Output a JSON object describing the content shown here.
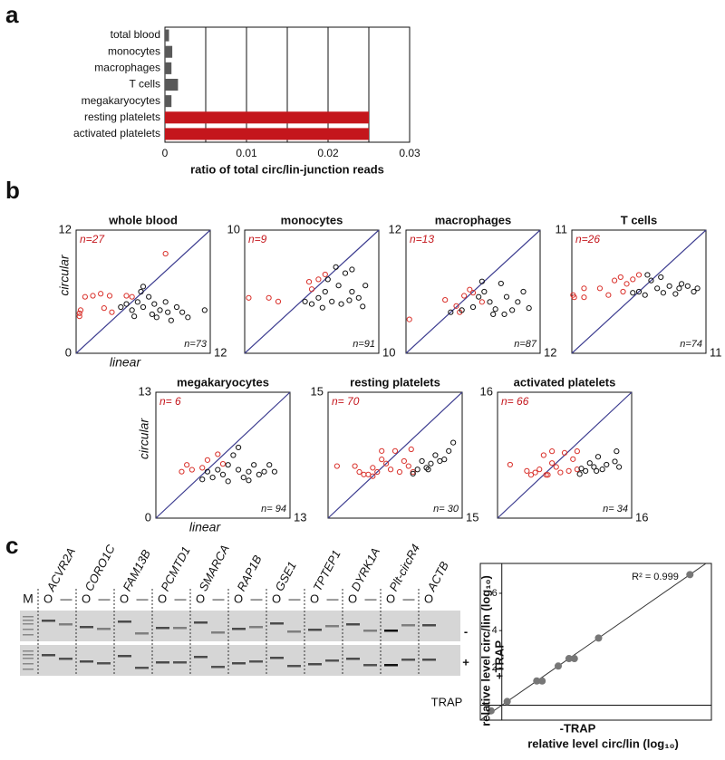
{
  "panel_labels": [
    "a",
    "b",
    "c"
  ],
  "chart_data": [
    {
      "type": "bar",
      "categories": [
        "total blood",
        "monocytes",
        "macrophages",
        "T cells",
        "megakaryocytes",
        "resting platelets",
        "activated platelets"
      ],
      "values": [
        0.0005,
        0.0009,
        0.0008,
        0.0016,
        0.0008,
        0.025,
        0.025
      ],
      "colors": [
        "#595959",
        "#595959",
        "#595959",
        "#595959",
        "#595959",
        "#c4161c",
        "#c4161c"
      ],
      "xlim": [
        0,
        0.03
      ],
      "xticks": [
        0,
        0.01,
        0.02,
        0.03
      ],
      "minor_xticks": [
        0.005,
        0.015,
        0.025
      ],
      "grid": true,
      "xlabel": "ratio of total circ/lin-junction reads"
    },
    {
      "type": "scatter",
      "title": "whole blood",
      "xlim": [
        0,
        12
      ],
      "ylim": [
        0,
        12
      ],
      "xticks": [
        12
      ],
      "yticks": [
        0,
        12
      ],
      "diagonal": "#3b3b8f",
      "xlabel": "linear",
      "ylabel": "circular",
      "annotations": [
        {
          "text": "n=27",
          "color": "#c4161c"
        },
        {
          "text": "n=73",
          "color": "#111"
        }
      ],
      "series": [
        {
          "color": "#d9302a",
          "x": [
            0.3,
            0.3,
            0.4,
            0.8,
            1.5,
            2.2,
            3,
            4.5,
            5,
            2.5,
            3.2,
            8
          ],
          "y": [
            3.6,
            3.9,
            4.2,
            5.5,
            5.6,
            5.8,
            5.6,
            5.6,
            5.5,
            4.4,
            4,
            9.7
          ]
        },
        {
          "color": "#111",
          "x": [
            4,
            4.5,
            5,
            5.5,
            5.8,
            6,
            6.5,
            7,
            7.2,
            7.5,
            8,
            8.2,
            8.5,
            9,
            9.5,
            10,
            11.5,
            6,
            6.8,
            5.2
          ],
          "y": [
            4.5,
            4.8,
            4.2,
            5,
            6,
            4.5,
            5.5,
            4.8,
            3.5,
            4.2,
            5,
            4,
            3.2,
            4.5,
            4,
            3.5,
            4.2,
            6.5,
            3.8,
            3.6
          ]
        }
      ]
    },
    {
      "type": "scatter",
      "title": "monocytes",
      "xlim": [
        0,
        10
      ],
      "ylim": [
        0,
        10
      ],
      "xticks": [
        10
      ],
      "yticks": [
        10
      ],
      "diagonal": "#3b3b8f",
      "annotations": [
        {
          "text": "n=9",
          "color": "#c4161c"
        },
        {
          "text": "n=91",
          "color": "#111"
        }
      ],
      "series": [
        {
          "color": "#d9302a",
          "x": [
            0.3,
            1.8,
            2.5,
            4.8,
            5.5,
            6,
            5
          ],
          "y": [
            4.5,
            4.5,
            4.2,
            5.8,
            6,
            6.4,
            5.2
          ]
        },
        {
          "color": "#111",
          "x": [
            4.5,
            5,
            5.5,
            6,
            6.5,
            7,
            7.5,
            8,
            8.5,
            8.8,
            6.2,
            7.2,
            5.8,
            8,
            6.8,
            7.8,
            9
          ],
          "y": [
            4.2,
            4,
            4.5,
            5,
            4.2,
            5.5,
            6.5,
            5,
            4.5,
            3.8,
            6,
            4,
            3.7,
            6.8,
            7,
            4.3,
            5.5
          ]
        }
      ]
    },
    {
      "type": "scatter",
      "title": "macrophages",
      "xlim": [
        0,
        12
      ],
      "ylim": [
        0,
        12
      ],
      "xticks": [
        12
      ],
      "yticks": [
        12
      ],
      "diagonal": "#3b3b8f",
      "annotations": [
        {
          "text": "n=13",
          "color": "#c4161c"
        },
        {
          "text": "n=87",
          "color": "#111"
        }
      ],
      "series": [
        {
          "color": "#d9302a",
          "x": [
            0.3,
            3.5,
            4.5,
            5.2,
            6,
            5.7,
            4.8,
            6.8
          ],
          "y": [
            3.3,
            5.2,
            4.6,
            5.6,
            5.9,
            6.2,
            4,
            5
          ]
        },
        {
          "color": "#111",
          "x": [
            4,
            5,
            6,
            6.5,
            7,
            7.5,
            8,
            8.5,
            9,
            9.5,
            10,
            11,
            6.8,
            7.8,
            8.8,
            10.5
          ],
          "y": [
            4,
            4.2,
            4.5,
            5.5,
            6,
            5,
            4.3,
            6.8,
            5.5,
            4.2,
            5,
            4.4,
            7,
            3.8,
            3.8,
            6
          ]
        }
      ]
    },
    {
      "type": "scatter",
      "title": "T cells",
      "xlim": [
        0,
        11
      ],
      "ylim": [
        0,
        11
      ],
      "xticks": [
        11
      ],
      "yticks": [
        11
      ],
      "diagonal": "#3b3b8f",
      "annotations": [
        {
          "text": "n=26",
          "color": "#c4161c"
        },
        {
          "text": "n=74",
          "color": "#111"
        }
      ],
      "series": [
        {
          "color": "#d9302a",
          "x": [
            0.1,
            0.2,
            1,
            1,
            2.3,
            3,
            3.5,
            4,
            4.5,
            5,
            5.5,
            4.2
          ],
          "y": [
            5.2,
            5,
            5.8,
            5,
            5.8,
            5.2,
            6.5,
            6.8,
            6.2,
            6.6,
            7,
            5.5
          ]
        },
        {
          "color": "#111",
          "x": [
            5,
            5.5,
            6,
            6.5,
            7,
            7.5,
            8,
            8.5,
            9,
            9.5,
            10,
            6.2,
            7.3,
            8.8,
            10.3
          ],
          "y": [
            5.4,
            5.5,
            5.2,
            6.5,
            5.8,
            5.4,
            6,
            5.3,
            6.2,
            6,
            5.5,
            7,
            6.8,
            5.8,
            5.8
          ]
        }
      ]
    },
    {
      "type": "scatter",
      "title": "megakaryocytes",
      "xlim": [
        0,
        13
      ],
      "ylim": [
        0,
        13
      ],
      "xticks": [
        13
      ],
      "yticks": [
        0,
        13
      ],
      "diagonal": "#3b3b8f",
      "xlabel": "linear",
      "ylabel": "circular",
      "annotations": [
        {
          "text": "n= 6",
          "color": "#c4161c"
        },
        {
          "text": "n= 94",
          "color": "#111"
        }
      ],
      "series": [
        {
          "color": "#d9302a",
          "x": [
            2.5,
            3,
            3.5,
            4.5,
            5,
            6,
            6.5
          ],
          "y": [
            4.8,
            5.5,
            5,
            5.2,
            6,
            6.6,
            5.6
          ]
        },
        {
          "color": "#111",
          "x": [
            4.5,
            5,
            5.5,
            6,
            6.5,
            7,
            7.5,
            8,
            8.5,
            9,
            9.5,
            10,
            10.5,
            11,
            11.5,
            8,
            7,
            9
          ],
          "y": [
            4,
            4.8,
            4.2,
            5,
            4.5,
            5.5,
            6.5,
            5,
            4.2,
            4.8,
            5.5,
            4.5,
            4.8,
            5.5,
            4.8,
            7.3,
            3.8,
            3.9
          ]
        }
      ]
    },
    {
      "type": "scatter",
      "title": "resting platelets",
      "xlim": [
        0,
        15
      ],
      "ylim": [
        0,
        15
      ],
      "xticks": [
        15
      ],
      "yticks": [
        15
      ],
      "diagonal": "#3b3b8f",
      "annotations": [
        {
          "text": "n= 70",
          "color": "#c4161c"
        },
        {
          "text": "n= 30",
          "color": "#111"
        }
      ],
      "series": [
        {
          "color": "#d9302a",
          "x": [
            1,
            3,
            3.5,
            4,
            4.5,
            5,
            5.5,
            6,
            6.5,
            7,
            7.5,
            8,
            8.5,
            6,
            5,
            9,
            9.5,
            9.3
          ],
          "y": [
            6.2,
            6.2,
            5.5,
            5.2,
            5.2,
            6,
            5.5,
            7,
            6.5,
            5.8,
            8,
            5.5,
            6.8,
            8,
            5,
            6.2,
            5.5,
            8.2
          ]
        },
        {
          "color": "#111",
          "x": [
            9.5,
            10,
            10.5,
            11,
            11.5,
            12,
            12.5,
            13,
            13.5,
            14,
            11.2
          ],
          "y": [
            5.3,
            5.8,
            6.8,
            6,
            6.5,
            7.5,
            6.8,
            7,
            8,
            9,
            5.8
          ]
        }
      ]
    },
    {
      "type": "scatter",
      "title": "activated platelets",
      "xlim": [
        0,
        16
      ],
      "ylim": [
        0,
        16
      ],
      "xticks": [
        16
      ],
      "yticks": [
        16
      ],
      "diagonal": "#3b3b8f",
      "annotations": [
        {
          "text": "n= 66",
          "color": "#c4161c"
        },
        {
          "text": "n= 34",
          "color": "#111"
        }
      ],
      "series": [
        {
          "color": "#d9302a",
          "x": [
            1.5,
            3.5,
            4,
            4.5,
            5,
            5.5,
            6,
            6.5,
            7,
            7.5,
            8,
            8.5,
            9,
            9.5,
            6.5,
            5.8,
            9.5
          ],
          "y": [
            6.8,
            6,
            5.5,
            5.8,
            6.2,
            8,
            5.5,
            7,
            6.5,
            5.8,
            8.3,
            6,
            7.5,
            6.2,
            8.5,
            5.5,
            8.5
          ]
        },
        {
          "color": "#111",
          "x": [
            9.8,
            10,
            10.5,
            11,
            11.5,
            12,
            12.5,
            13,
            14,
            14.5,
            14.2,
            11.8
          ],
          "y": [
            5.6,
            6.3,
            6,
            7,
            6.5,
            7.8,
            6.2,
            6.8,
            7.2,
            6.5,
            8.5,
            6
          ]
        }
      ]
    },
    {
      "type": "fit",
      "xlim": [
        -0.8,
        7.8
      ],
      "ylim": [
        -0.8,
        7.6
      ],
      "yticks": [
        2,
        4,
        6
      ],
      "color": "#777",
      "fit_line": "#333",
      "origin_lines": true,
      "annotations": [
        {
          "text": "R² = 0.999",
          "color": "#111"
        }
      ],
      "xlabel": [
        "-TRAP",
        "relative level circ/lin (log₁₀)"
      ],
      "ylabel": [
        "+TRAP",
        "relative level circ/lin (log₁₀)"
      ],
      "x": [
        -0.4,
        0.2,
        1.3,
        1.5,
        2.1,
        2.5,
        2.7,
        3.6,
        7
      ],
      "y": [
        -0.3,
        0.2,
        1.3,
        1.3,
        2.1,
        2.5,
        2.5,
        3.6,
        7
      ]
    }
  ],
  "gel": {
    "marker": "M",
    "genes": [
      "ACVR2A",
      "CORO1C",
      "FAM13B",
      "PCMTD1",
      "SMARCA",
      "RAP1B",
      "GSE1",
      "TPTEP1",
      "DYRK1A",
      "Plt-circR4",
      "ACTB"
    ],
    "lane_labels": [
      "O",
      "—"
    ],
    "rows": [
      "-",
      "+"
    ],
    "condition": "TRAP"
  }
}
